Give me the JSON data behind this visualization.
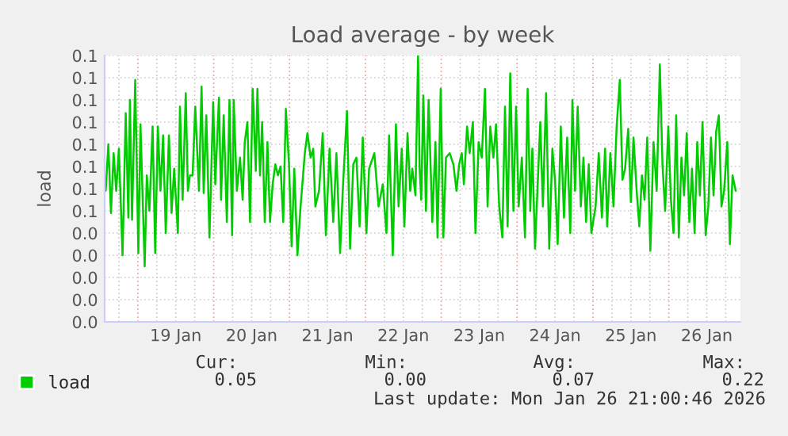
{
  "chart_data": {
    "type": "line",
    "title": "Load average - by week",
    "ylabel": "load",
    "xlim": [
      "2026-01-18T13:30",
      "2026-01-26T22:40"
    ],
    "xticks": [
      {
        "value": "2026-01-18T18:00",
        "label": null
      },
      {
        "value": "2026-01-19T00:00",
        "label": null
      },
      {
        "value": "2026-01-19T06:00",
        "label": null
      },
      {
        "value": "2026-01-19T12:00",
        "label": "19 Jan"
      },
      {
        "value": "2026-01-19T18:00",
        "label": null
      },
      {
        "value": "2026-01-20T00:00",
        "label": null
      },
      {
        "value": "2026-01-20T06:00",
        "label": null
      },
      {
        "value": "2026-01-20T12:00",
        "label": "20 Jan"
      },
      {
        "value": "2026-01-20T18:00",
        "label": null
      },
      {
        "value": "2026-01-21T00:00",
        "label": null
      },
      {
        "value": "2026-01-21T06:00",
        "label": null
      },
      {
        "value": "2026-01-21T12:00",
        "label": "21 Jan"
      },
      {
        "value": "2026-01-21T18:00",
        "label": null
      },
      {
        "value": "2026-01-22T00:00",
        "label": null
      },
      {
        "value": "2026-01-22T06:00",
        "label": null
      },
      {
        "value": "2026-01-22T12:00",
        "label": "22 Jan"
      },
      {
        "value": "2026-01-22T18:00",
        "label": null
      },
      {
        "value": "2026-01-23T00:00",
        "label": null
      },
      {
        "value": "2026-01-23T06:00",
        "label": null
      },
      {
        "value": "2026-01-23T12:00",
        "label": "23 Jan"
      },
      {
        "value": "2026-01-23T18:00",
        "label": null
      },
      {
        "value": "2026-01-24T00:00",
        "label": null
      },
      {
        "value": "2026-01-24T06:00",
        "label": null
      },
      {
        "value": "2026-01-24T12:00",
        "label": "24 Jan"
      },
      {
        "value": "2026-01-24T18:00",
        "label": null
      },
      {
        "value": "2026-01-25T00:00",
        "label": null
      },
      {
        "value": "2026-01-25T06:00",
        "label": null
      },
      {
        "value": "2026-01-25T12:00",
        "label": "25 Jan"
      },
      {
        "value": "2026-01-25T18:00",
        "label": null
      },
      {
        "value": "2026-01-26T00:00",
        "label": null
      },
      {
        "value": "2026-01-26T06:00",
        "label": null
      },
      {
        "value": "2026-01-26T12:00",
        "label": "26 Jan"
      },
      {
        "value": "2026-01-26T18:00",
        "label": null
      }
    ],
    "ylim": [
      0,
      0.12
    ],
    "yticks": [
      {
        "value": 0,
        "label": "0.0"
      },
      {
        "value": 0.01,
        "label": "0.0"
      },
      {
        "value": 0.02,
        "label": "0.0"
      },
      {
        "value": 0.03,
        "label": "0.0"
      },
      {
        "value": 0.04,
        "label": "0.0"
      },
      {
        "value": 0.05,
        "label": "0.1"
      },
      {
        "value": 0.06,
        "label": "0.1"
      },
      {
        "value": 0.07,
        "label": "0.1"
      },
      {
        "value": 0.08,
        "label": "0.1"
      },
      {
        "value": 0.09,
        "label": "0.1"
      },
      {
        "value": 0.1,
        "label": "0.1"
      },
      {
        "value": 0.11,
        "label": "0.1"
      },
      {
        "value": 0.12,
        "label": "0.1"
      }
    ],
    "grid": true,
    "legend": "bottom",
    "marker": "none",
    "line_style": "solid",
    "annotations": [
      "Cur:",
      "0.05",
      "Min:",
      "0.00",
      "Avg:",
      "0.07",
      "Max:",
      "0.22",
      "Last update: Mon Jan 26 21:00:46 2026"
    ],
    "series": [
      {
        "name": "load",
        "color": "#00cc00",
        "x": [
          "2026-01-18T13:50",
          "2026-01-18T14:40",
          "2026-01-18T15:30",
          "2026-01-18T16:20",
          "2026-01-18T17:10",
          "2026-01-18T18:00",
          "2026-01-18T19:10",
          "2026-01-18T20:10",
          "2026-01-18T21:00",
          "2026-01-18T21:30",
          "2026-01-18T22:10",
          "2026-01-18T23:10",
          "2026-01-19T00:10",
          "2026-01-19T00:50",
          "2026-01-19T02:10",
          "2026-01-19T02:50",
          "2026-01-19T03:40",
          "2026-01-19T04:40",
          "2026-01-19T05:30",
          "2026-01-19T06:20",
          "2026-01-19T07:10",
          "2026-01-19T08:00",
          "2026-01-19T08:50",
          "2026-01-19T09:50",
          "2026-01-19T10:40",
          "2026-01-19T11:30",
          "2026-01-19T12:40",
          "2026-01-19T13:20",
          "2026-01-19T14:10",
          "2026-01-19T15:10",
          "2026-01-19T15:50",
          "2026-01-19T16:30",
          "2026-01-19T17:20",
          "2026-01-19T18:10",
          "2026-01-19T19:20",
          "2026-01-19T20:10",
          "2026-01-19T20:50",
          "2026-01-19T21:40",
          "2026-01-19T22:40",
          "2026-01-19T23:50",
          "2026-01-20T00:30",
          "2026-01-20T01:40",
          "2026-01-20T02:20",
          "2026-01-20T03:10",
          "2026-01-20T04:10",
          "2026-01-20T05:00",
          "2026-01-20T05:50",
          "2026-01-20T06:20",
          "2026-01-20T07:20",
          "2026-01-20T08:20",
          "2026-01-20T09:10",
          "2026-01-20T09:50",
          "2026-01-20T10:40",
          "2026-01-20T11:30",
          "2026-01-20T12:20",
          "2026-01-20T13:20",
          "2026-01-20T13:50",
          "2026-01-20T14:40",
          "2026-01-20T15:20",
          "2026-01-20T16:10",
          "2026-01-20T17:00",
          "2026-01-20T17:50",
          "2026-01-20T18:40",
          "2026-01-20T19:30",
          "2026-01-20T20:20",
          "2026-01-20T21:10",
          "2026-01-20T22:00",
          "2026-01-20T22:50",
          "2026-01-20T23:50",
          "2026-01-21T00:40",
          "2026-01-21T01:30",
          "2026-01-21T02:30",
          "2026-01-21T03:30",
          "2026-01-21T04:50",
          "2026-01-21T05:40",
          "2026-01-21T06:40",
          "2026-01-21T07:30",
          "2026-01-21T08:10",
          "2026-01-21T09:20",
          "2026-01-21T10:30",
          "2026-01-21T11:30",
          "2026-01-21T12:40",
          "2026-01-21T13:50",
          "2026-01-21T14:50",
          "2026-01-21T16:00",
          "2026-01-21T16:50",
          "2026-01-21T18:10",
          "2026-01-21T19:10",
          "2026-01-21T20:10",
          "2026-01-21T21:10",
          "2026-01-21T22:10",
          "2026-01-21T23:10",
          "2026-01-22T00:20",
          "2026-01-22T01:10",
          "2026-01-22T02:50",
          "2026-01-22T04:10",
          "2026-01-22T05:30",
          "2026-01-22T06:40",
          "2026-01-22T07:30",
          "2026-01-22T08:40",
          "2026-01-22T09:40",
          "2026-01-22T10:30",
          "2026-01-22T11:30",
          "2026-01-22T12:20",
          "2026-01-22T13:20",
          "2026-01-22T14:10",
          "2026-01-22T14:50",
          "2026-01-22T15:50",
          "2026-01-22T16:40",
          "2026-01-22T17:10",
          "2026-01-22T17:40",
          "2026-01-22T18:20",
          "2026-01-22T19:10",
          "2026-01-22T20:00",
          "2026-01-22T21:10",
          "2026-01-22T22:10",
          "2026-01-22T22:50",
          "2026-01-22T23:50",
          "2026-01-23T00:40",
          "2026-01-23T01:30",
          "2026-01-23T02:40",
          "2026-01-23T03:50",
          "2026-01-23T04:50",
          "2026-01-23T05:40",
          "2026-01-23T06:30",
          "2026-01-23T07:10",
          "2026-01-23T08:10",
          "2026-01-23T09:00",
          "2026-01-23T10:00",
          "2026-01-23T10:50",
          "2026-01-23T11:50",
          "2026-01-23T12:50",
          "2026-01-23T13:50",
          "2026-01-23T14:40",
          "2026-01-23T15:30",
          "2026-01-23T16:30",
          "2026-01-23T17:20",
          "2026-01-23T18:20",
          "2026-01-23T19:20",
          "2026-01-23T20:10",
          "2026-01-23T21:00",
          "2026-01-23T21:50",
          "2026-01-23T22:50",
          "2026-01-23T23:40",
          "2026-01-24T00:30",
          "2026-01-24T01:30",
          "2026-01-24T02:30",
          "2026-01-24T03:20",
          "2026-01-24T04:10",
          "2026-01-24T04:50",
          "2026-01-24T05:40",
          "2026-01-24T07:20",
          "2026-01-24T08:10",
          "2026-01-24T09:10",
          "2026-01-24T10:10",
          "2026-01-24T11:10",
          "2026-01-24T12:00",
          "2026-01-24T12:50",
          "2026-01-24T13:50",
          "2026-01-24T14:50",
          "2026-01-24T15:50",
          "2026-01-24T16:50",
          "2026-01-24T17:30",
          "2026-01-24T18:20",
          "2026-01-24T19:10",
          "2026-01-24T20:10",
          "2026-01-24T21:00",
          "2026-01-24T21:50",
          "2026-01-24T22:40",
          "2026-01-24T23:30",
          "2026-01-25T00:50",
          "2026-01-25T01:50",
          "2026-01-25T02:50",
          "2026-01-25T03:50",
          "2026-01-25T04:30",
          "2026-01-25T05:30",
          "2026-01-25T06:30",
          "2026-01-25T07:30",
          "2026-01-25T08:30",
          "2026-01-25T09:20",
          "2026-01-25T10:10",
          "2026-01-25T11:10",
          "2026-01-25T12:00",
          "2026-01-25T12:50",
          "2026-01-25T13:50",
          "2026-01-25T14:40",
          "2026-01-25T15:30",
          "2026-01-25T16:20",
          "2026-01-25T17:10",
          "2026-01-25T18:10",
          "2026-01-25T19:10",
          "2026-01-25T20:10",
          "2026-01-25T21:10",
          "2026-01-25T22:00",
          "2026-01-25T22:50",
          "2026-01-25T23:50",
          "2026-01-26T00:40",
          "2026-01-26T01:30",
          "2026-01-26T02:20",
          "2026-01-26T03:10",
          "2026-01-26T04:00",
          "2026-01-26T04:50",
          "2026-01-26T05:40",
          "2026-01-26T06:30",
          "2026-01-26T07:20",
          "2026-01-26T08:10",
          "2026-01-26T09:00",
          "2026-01-26T09:50",
          "2026-01-26T10:40",
          "2026-01-26T11:40",
          "2026-01-26T12:30",
          "2026-01-26T13:20",
          "2026-01-26T14:10",
          "2026-01-26T15:00",
          "2026-01-26T15:50",
          "2026-01-26T16:40",
          "2026-01-26T17:30",
          "2026-01-26T18:30",
          "2026-01-26T19:20",
          "2026-01-26T20:10",
          "2026-01-26T21:10"
        ],
        "values": [
          0.059,
          0.08,
          0.049,
          0.076,
          0.059,
          0.078,
          0.03,
          0.094,
          0.047,
          0.1,
          0.046,
          0.109,
          0.031,
          0.089,
          0.025,
          0.066,
          0.05,
          0.088,
          0.031,
          0.088,
          0.059,
          0.084,
          0.04,
          0.084,
          0.049,
          0.069,
          0.04,
          0.097,
          0.055,
          0.103,
          0.059,
          0.066,
          0.066,
          0.097,
          0.059,
          0.106,
          0.058,
          0.093,
          0.038,
          0.099,
          0.062,
          0.101,
          0.055,
          0.093,
          0.045,
          0.1,
          0.039,
          0.1,
          0.059,
          0.074,
          0.055,
          0.081,
          0.09,
          0.045,
          0.105,
          0.068,
          0.105,
          0.066,
          0.09,
          0.045,
          0.081,
          0.045,
          0.062,
          0.071,
          0.066,
          0.07,
          0.045,
          0.096,
          0.071,
          0.034,
          0.069,
          0.03,
          0.052,
          0.076,
          0.085,
          0.074,
          0.078,
          0.052,
          0.059,
          0.085,
          0.039,
          0.078,
          0.045,
          0.076,
          0.031,
          0.059,
          0.095,
          0.033,
          0.071,
          0.074,
          0.043,
          0.083,
          0.04,
          0.069,
          0.076,
          0.052,
          0.062,
          0.04,
          0.084,
          0.03,
          0.089,
          0.052,
          0.078,
          0.043,
          0.085,
          0.059,
          0.069,
          0.057,
          0.12,
          0.069,
          0.055,
          0.102,
          0.05,
          0.1,
          0.045,
          0.081,
          0.038,
          0.105,
          0.038,
          0.074,
          0.076,
          0.071,
          0.059,
          0.071,
          0.076,
          0.062,
          0.088,
          0.076,
          0.09,
          0.04,
          0.081,
          0.074,
          0.105,
          0.052,
          0.088,
          0.074,
          0.089,
          0.052,
          0.038,
          0.097,
          0.043,
          0.112,
          0.05,
          0.097,
          0.052,
          0.074,
          0.038,
          0.105,
          0.05,
          0.078,
          0.033,
          0.09,
          0.052,
          0.103,
          0.033,
          0.078,
          0.064,
          0.035,
          0.088,
          0.047,
          0.083,
          0.04,
          0.1,
          0.059,
          0.097,
          0.052,
          0.074,
          0.045,
          0.071,
          0.04,
          0.052,
          0.076,
          0.047,
          0.078,
          0.043,
          0.076,
          0.052,
          0.088,
          0.109,
          0.064,
          0.069,
          0.087,
          0.054,
          0.083,
          0.059,
          0.043,
          0.066,
          0.055,
          0.083,
          0.032,
          0.081,
          0.059,
          0.116,
          0.071,
          0.05,
          0.088,
          0.055,
          0.04,
          0.093,
          0.038,
          0.074,
          0.057,
          0.085,
          0.045,
          0.069,
          0.04,
          0.081,
          0.057,
          0.09,
          0.039,
          0.052,
          0.083,
          0.057,
          0.086,
          0.093,
          0.052,
          0.059,
          0.081,
          0.035,
          0.066,
          0.059
        ]
      }
    ]
  }
}
